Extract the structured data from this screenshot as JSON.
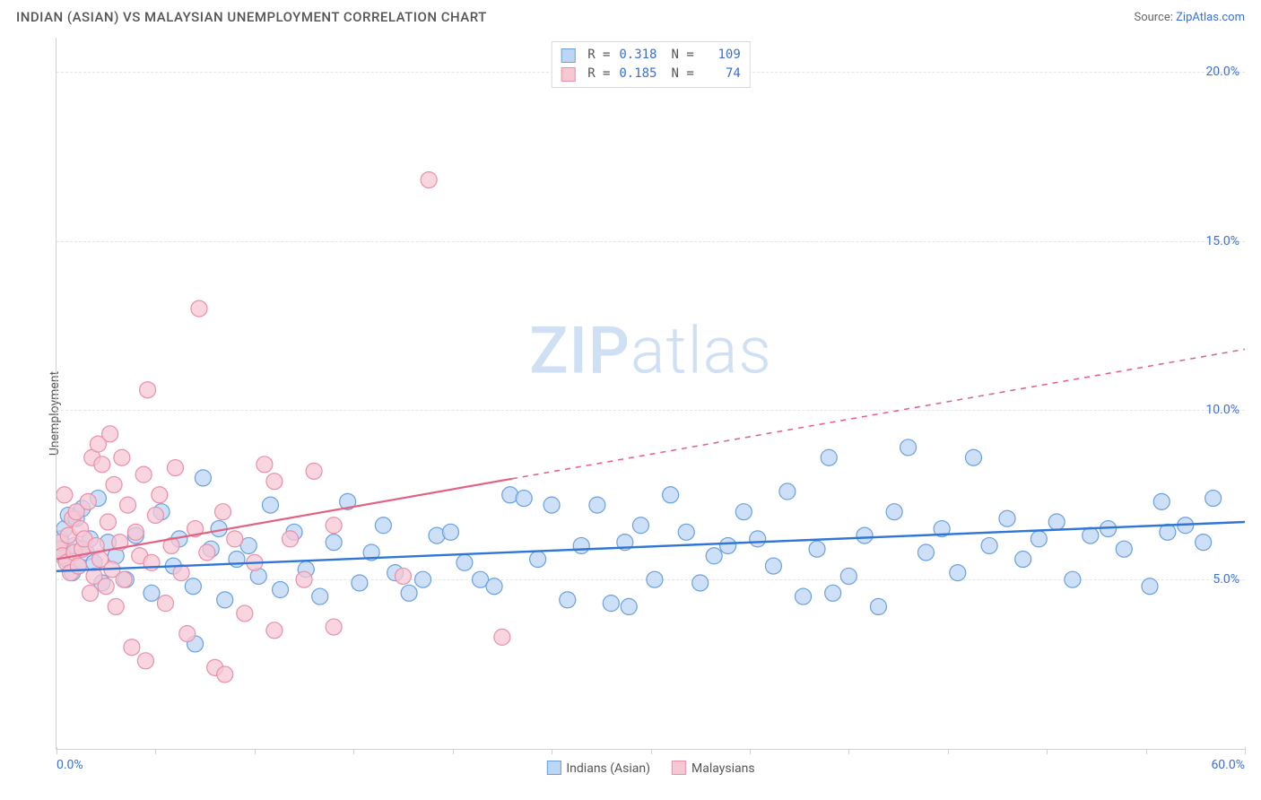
{
  "header": {
    "title": "INDIAN (ASIAN) VS MALAYSIAN UNEMPLOYMENT CORRELATION CHART",
    "source_label": "Source: ",
    "source_name": "ZipAtlas.com"
  },
  "chart": {
    "type": "scatter",
    "ylabel": "Unemployment",
    "watermark": "ZIPatlas",
    "xlim": [
      0,
      60
    ],
    "ylim": [
      0,
      21
    ],
    "x_ticks_major": [
      0,
      60
    ],
    "x_ticks_minor": [
      5,
      10,
      15,
      20,
      25,
      30,
      35,
      40,
      45,
      50,
      55
    ],
    "x_tick_labels": {
      "0": "0.0%",
      "60": "60.0%"
    },
    "y_ticks": [
      5,
      10,
      15,
      20
    ],
    "y_tick_labels": {
      "5": "5.0%",
      "10": "10.0%",
      "15": "15.0%",
      "20": "20.0%"
    },
    "grid_color": "#e4e4e4",
    "axis_color": "#d0d0d0",
    "background_color": "#ffffff",
    "top_legend": {
      "rows": [
        {
          "swatch_fill": "#bcd6f5",
          "swatch_stroke": "#6aa0e0",
          "r_label": "R =",
          "r": "0.318",
          "n_label": "N =",
          "n": "109"
        },
        {
          "swatch_fill": "#f7c7d4",
          "swatch_stroke": "#e98fa8",
          "r_label": "R =",
          "r": "0.185",
          "n_label": "N =",
          "n": " 74"
        }
      ]
    },
    "bottom_legend": [
      {
        "swatch_fill": "#bcd6f5",
        "swatch_stroke": "#6aa0e0",
        "label": "Indians (Asian)"
      },
      {
        "swatch_fill": "#f7c7d4",
        "swatch_stroke": "#e98fa8",
        "label": "Malaysians"
      }
    ],
    "series": [
      {
        "name": "Indians (Asian)",
        "marker_fill": "#bcd6f5",
        "marker_stroke": "#6aa0e0",
        "marker_opacity": 0.75,
        "marker_radius": 9,
        "trend": {
          "color": "#2f76d6",
          "width": 2.4,
          "x1": 0,
          "y1": 5.25,
          "x2": 60,
          "y2": 6.7,
          "dash_from_x": null
        },
        "points": [
          [
            0.2,
            6.2
          ],
          [
            0.3,
            5.9
          ],
          [
            0.4,
            6.5
          ],
          [
            0.5,
            5.6
          ],
          [
            0.6,
            6.9
          ],
          [
            0.8,
            5.2
          ],
          [
            0.9,
            6.0
          ],
          [
            1.0,
            6.8
          ],
          [
            1.1,
            5.4
          ],
          [
            1.3,
            7.1
          ],
          [
            1.5,
            5.8
          ],
          [
            1.7,
            6.2
          ],
          [
            1.9,
            5.5
          ],
          [
            2.1,
            7.4
          ],
          [
            2.3,
            4.9
          ],
          [
            2.6,
            6.1
          ],
          [
            3.0,
            5.7
          ],
          [
            3.5,
            5.0
          ],
          [
            4.0,
            6.3
          ],
          [
            4.8,
            4.6
          ],
          [
            5.3,
            7.0
          ],
          [
            5.9,
            5.4
          ],
          [
            6.2,
            6.2
          ],
          [
            6.9,
            4.8
          ],
          [
            7.4,
            8.0
          ],
          [
            7.8,
            5.9
          ],
          [
            8.2,
            6.5
          ],
          [
            7.0,
            3.1
          ],
          [
            8.5,
            4.4
          ],
          [
            9.1,
            5.6
          ],
          [
            9.7,
            6.0
          ],
          [
            10.2,
            5.1
          ],
          [
            10.8,
            7.2
          ],
          [
            11.3,
            4.7
          ],
          [
            12.0,
            6.4
          ],
          [
            12.6,
            5.3
          ],
          [
            13.3,
            4.5
          ],
          [
            14.0,
            6.1
          ],
          [
            14.7,
            7.3
          ],
          [
            15.3,
            4.9
          ],
          [
            15.9,
            5.8
          ],
          [
            16.5,
            6.6
          ],
          [
            17.1,
            5.2
          ],
          [
            17.8,
            4.6
          ],
          [
            18.5,
            5.0
          ],
          [
            19.2,
            6.3
          ],
          [
            19.9,
            6.4
          ],
          [
            20.6,
            5.5
          ],
          [
            21.4,
            5.0
          ],
          [
            22.1,
            4.8
          ],
          [
            22.9,
            7.5
          ],
          [
            23.6,
            7.4
          ],
          [
            24.3,
            5.6
          ],
          [
            25.0,
            7.2
          ],
          [
            25.8,
            4.4
          ],
          [
            26.5,
            6.0
          ],
          [
            27.3,
            7.2
          ],
          [
            28.0,
            4.3
          ],
          [
            28.7,
            6.1
          ],
          [
            28.9,
            4.2
          ],
          [
            29.5,
            6.6
          ],
          [
            30.2,
            5.0
          ],
          [
            31.0,
            7.5
          ],
          [
            31.8,
            6.4
          ],
          [
            32.5,
            4.9
          ],
          [
            33.2,
            5.7
          ],
          [
            33.9,
            6.0
          ],
          [
            34.7,
            7.0
          ],
          [
            35.4,
            6.2
          ],
          [
            36.2,
            5.4
          ],
          [
            36.9,
            7.6
          ],
          [
            37.7,
            4.5
          ],
          [
            38.4,
            5.9
          ],
          [
            39.2,
            4.6
          ],
          [
            39.0,
            8.6
          ],
          [
            40.0,
            5.1
          ],
          [
            40.8,
            6.3
          ],
          [
            41.5,
            4.2
          ],
          [
            42.3,
            7.0
          ],
          [
            43.0,
            8.9
          ],
          [
            43.9,
            5.8
          ],
          [
            44.7,
            6.5
          ],
          [
            45.5,
            5.2
          ],
          [
            46.3,
            8.6
          ],
          [
            47.1,
            6.0
          ],
          [
            48.0,
            6.8
          ],
          [
            48.8,
            5.6
          ],
          [
            49.6,
            6.2
          ],
          [
            50.5,
            6.7
          ],
          [
            51.3,
            5.0
          ],
          [
            52.2,
            6.3
          ],
          [
            53.1,
            6.5
          ],
          [
            53.9,
            5.9
          ],
          [
            55.2,
            4.8
          ],
          [
            55.8,
            7.3
          ],
          [
            56.1,
            6.4
          ],
          [
            57.0,
            6.6
          ],
          [
            57.9,
            6.1
          ],
          [
            58.4,
            7.4
          ]
        ]
      },
      {
        "name": "Malaysians",
        "marker_fill": "#f7c7d4",
        "marker_stroke": "#e98fa8",
        "marker_opacity": 0.75,
        "marker_radius": 9,
        "trend": {
          "color": "#e26284",
          "width": 2.2,
          "x1": 0,
          "y1": 5.6,
          "x2": 60,
          "y2": 11.8,
          "dash_from_x": 23
        },
        "points": [
          [
            0.1,
            5.9
          ],
          [
            0.2,
            6.1
          ],
          [
            0.3,
            5.7
          ],
          [
            0.4,
            7.5
          ],
          [
            0.5,
            5.5
          ],
          [
            0.6,
            6.3
          ],
          [
            0.7,
            5.2
          ],
          [
            0.8,
            6.8
          ],
          [
            0.9,
            5.8
          ],
          [
            1.0,
            7.0
          ],
          [
            1.1,
            5.4
          ],
          [
            1.2,
            6.5
          ],
          [
            1.3,
            5.9
          ],
          [
            1.4,
            6.2
          ],
          [
            1.6,
            7.3
          ],
          [
            1.7,
            4.6
          ],
          [
            1.8,
            8.6
          ],
          [
            1.9,
            5.1
          ],
          [
            2.0,
            6.0
          ],
          [
            2.1,
            9.0
          ],
          [
            2.2,
            5.6
          ],
          [
            2.3,
            8.4
          ],
          [
            2.5,
            4.8
          ],
          [
            2.6,
            6.7
          ],
          [
            2.7,
            9.3
          ],
          [
            2.8,
            5.3
          ],
          [
            2.9,
            7.8
          ],
          [
            3.0,
            4.2
          ],
          [
            3.2,
            6.1
          ],
          [
            3.3,
            8.6
          ],
          [
            3.4,
            5.0
          ],
          [
            3.6,
            7.2
          ],
          [
            3.8,
            3.0
          ],
          [
            4.0,
            6.4
          ],
          [
            4.2,
            5.7
          ],
          [
            4.4,
            8.1
          ],
          [
            4.5,
            2.6
          ],
          [
            4.6,
            10.6
          ],
          [
            4.8,
            5.5
          ],
          [
            5.0,
            6.9
          ],
          [
            5.2,
            7.5
          ],
          [
            5.5,
            4.3
          ],
          [
            5.8,
            6.0
          ],
          [
            6.0,
            8.3
          ],
          [
            6.3,
            5.2
          ],
          [
            6.6,
            3.4
          ],
          [
            7.0,
            6.5
          ],
          [
            7.2,
            13.0
          ],
          [
            7.6,
            5.8
          ],
          [
            8.0,
            2.4
          ],
          [
            8.4,
            7.0
          ],
          [
            8.5,
            2.2
          ],
          [
            9.0,
            6.2
          ],
          [
            9.5,
            4.0
          ],
          [
            10.0,
            5.5
          ],
          [
            10.5,
            8.4
          ],
          [
            11.0,
            7.9
          ],
          [
            11.0,
            3.5
          ],
          [
            11.8,
            6.2
          ],
          [
            12.5,
            5.0
          ],
          [
            13.0,
            8.2
          ],
          [
            14.0,
            6.6
          ],
          [
            14.0,
            3.6
          ],
          [
            17.5,
            5.1
          ],
          [
            18.8,
            16.8
          ],
          [
            22.5,
            3.3
          ]
        ]
      }
    ]
  }
}
